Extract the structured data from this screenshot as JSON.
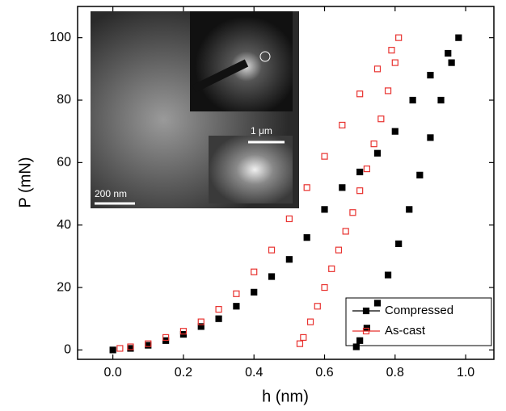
{
  "chart_data": {
    "type": "scatter",
    "x_label": "h (nm)",
    "y_label": "P (mN)",
    "xlim": [
      -0.1,
      1.08
    ],
    "ylim": [
      -3,
      110
    ],
    "xticks": [
      {
        "value": 0,
        "label": "0.0"
      },
      0.2,
      0.4,
      0.6,
      0.8,
      {
        "value": 1,
        "label": "1.0"
      }
    ],
    "yticks": [
      0,
      20,
      40,
      60,
      80,
      100
    ],
    "legend": "lower right",
    "annotations": [
      "200 nm",
      "1 μm"
    ],
    "series": [
      {
        "name": "Compressed",
        "color": "#000000",
        "marker": "filled-square",
        "x": [
          0,
          0.05,
          0.1,
          0.15,
          0.2,
          0.25,
          0.3,
          0.35,
          0.4,
          0.45,
          0.5,
          0.55,
          0.6,
          0.65,
          0.7,
          0.75,
          0.8,
          0.85,
          0.9,
          0.95,
          0.98,
          0.96,
          0.93,
          0.9,
          0.87,
          0.84,
          0.81,
          0.78,
          0.75,
          0.72,
          0.7,
          0.69
        ],
        "y": [
          0,
          0.5,
          1.5,
          3,
          5,
          7.5,
          10,
          14,
          18.5,
          23.5,
          29,
          36,
          45,
          52,
          57,
          63,
          70,
          80,
          88,
          95,
          100,
          92,
          80,
          68,
          56,
          45,
          34,
          24,
          15,
          7,
          3,
          1
        ]
      },
      {
        "name": "As-cast",
        "color": "#e8322f",
        "marker": "open-square",
        "x": [
          0.02,
          0.05,
          0.1,
          0.15,
          0.2,
          0.25,
          0.3,
          0.35,
          0.4,
          0.45,
          0.5,
          0.55,
          0.6,
          0.65,
          0.7,
          0.75,
          0.79,
          0.81,
          0.8,
          0.78,
          0.76,
          0.74,
          0.72,
          0.7,
          0.68,
          0.66,
          0.64,
          0.62,
          0.6,
          0.58,
          0.56,
          0.54,
          0.53
        ],
        "y": [
          0.5,
          1,
          2,
          4,
          6,
          9,
          13,
          18,
          25,
          32,
          42,
          52,
          62,
          72,
          82,
          90,
          96,
          100,
          92,
          83,
          74,
          66,
          58,
          51,
          44,
          38,
          32,
          26,
          20,
          14,
          9,
          4,
          2
        ]
      }
    ]
  }
}
